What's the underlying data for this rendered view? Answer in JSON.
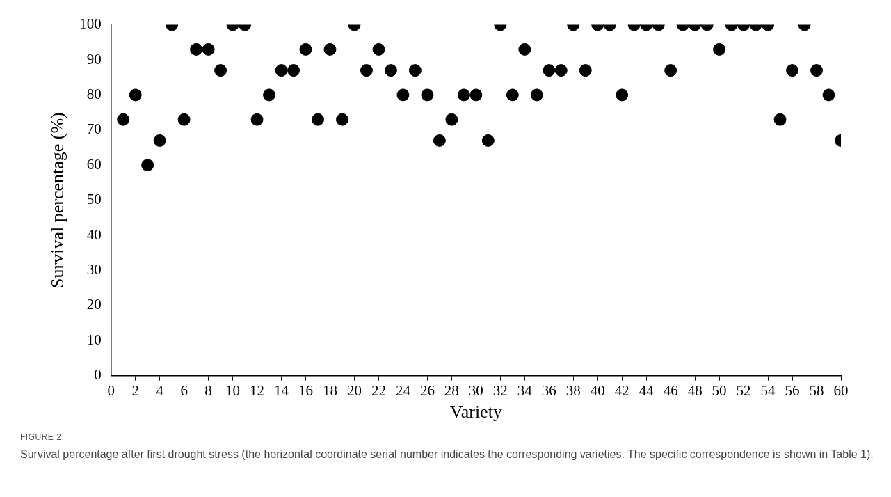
{
  "chart_data": {
    "type": "scatter",
    "xlabel": "Variety",
    "ylabel": "Survival percentage (%)",
    "x": [
      1,
      2,
      3,
      4,
      5,
      6,
      7,
      8,
      9,
      10,
      11,
      12,
      13,
      14,
      15,
      16,
      17,
      18,
      19,
      20,
      21,
      22,
      23,
      24,
      25,
      26,
      27,
      28,
      29,
      30,
      31,
      32,
      33,
      34,
      35,
      36,
      37,
      38,
      39,
      40,
      41,
      42,
      43,
      44,
      45,
      46,
      47,
      48,
      49,
      50,
      51,
      52,
      53,
      54,
      55,
      56,
      57,
      58,
      59,
      60
    ],
    "series": [
      {
        "color": "#000000",
        "values": [
          73,
          80,
          60,
          67,
          100,
          73,
          93,
          93,
          87,
          100,
          100,
          73,
          80,
          87,
          87,
          93,
          73,
          93,
          73,
          100,
          87,
          93,
          87,
          80,
          87,
          80,
          67,
          73,
          80,
          80,
          67,
          100,
          80,
          93,
          80,
          87,
          87,
          100,
          87,
          100,
          100,
          80,
          100,
          100,
          100,
          87,
          100,
          100,
          100,
          93,
          100,
          100,
          100,
          100,
          73,
          87,
          100,
          87,
          80,
          67
        ]
      }
    ],
    "xlim": [
      0,
      60
    ],
    "xticks": [
      0,
      2,
      4,
      6,
      8,
      10,
      12,
      14,
      16,
      18,
      20,
      22,
      24,
      26,
      28,
      30,
      32,
      34,
      36,
      38,
      40,
      42,
      44,
      46,
      48,
      50,
      52,
      54,
      56,
      58,
      60
    ],
    "ylim": [
      0,
      100
    ],
    "yticks": [
      0,
      10,
      20,
      30,
      40,
      50,
      60,
      70,
      80,
      90,
      100
    ],
    "grid": false,
    "legend": false,
    "marker": "circle",
    "annotations": [
      "FIGURE 2",
      "Survival percentage after first drought stress (the horizontal coordinate serial number indicates the corresponding varieties. The specific correspondence is shown in Table 1)."
    ]
  }
}
